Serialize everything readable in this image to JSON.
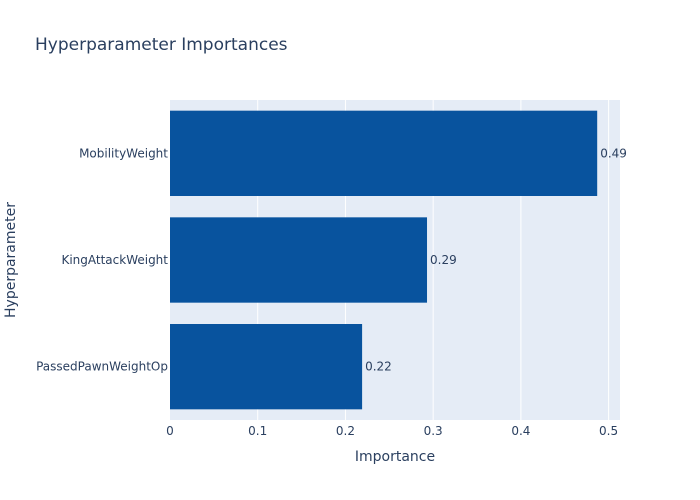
{
  "chart_data": {
    "type": "bar",
    "orientation": "horizontal",
    "title": "Hyperparameter Importances",
    "xlabel": "Importance",
    "ylabel": "Hyperparameter",
    "categories": [
      "MobilityWeight",
      "KingAttackWeight",
      "PassedPawnWeightOp"
    ],
    "values": [
      0.487,
      0.293,
      0.219
    ],
    "data_labels": [
      "0.49",
      "0.29",
      "0.22"
    ],
    "xlim": [
      0,
      0.513
    ],
    "xticks": [
      0,
      0.1,
      0.2,
      0.3,
      0.4,
      0.5
    ],
    "xtick_labels": [
      "0",
      "0.1",
      "0.2",
      "0.3",
      "0.4",
      "0.5"
    ],
    "grid": true,
    "legend": "none",
    "bar_color": "#08539e",
    "plot_bg": "#e5ecf6",
    "grid_color": "#ffffff",
    "text_color": "#2a3f5f"
  }
}
